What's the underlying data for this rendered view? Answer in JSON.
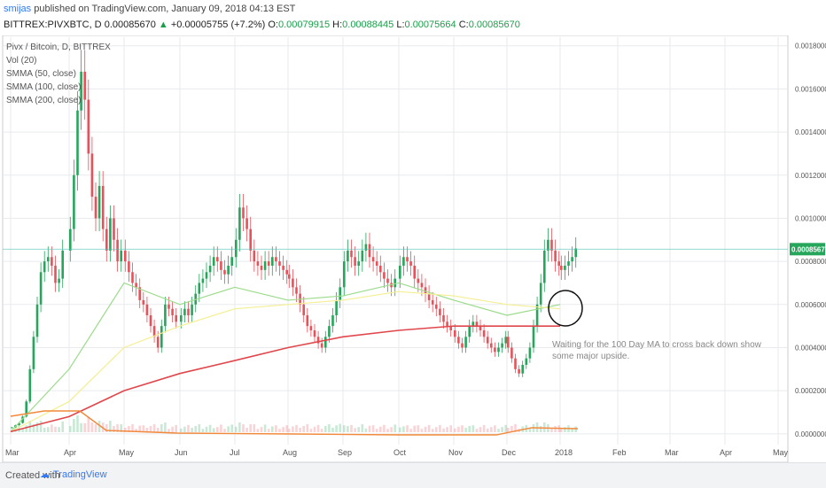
{
  "header": {
    "user": "smijas",
    "published_text": "published on TradingView.com, January 09, 2018 04:13 EST",
    "symbol": "BITTREX:PIVXBTC, D",
    "price": "0.00085670",
    "change_arrow": "▲",
    "change": "+0.00005755 (+7.2%)",
    "o_label": "O:",
    "o_value": "0.00079915",
    "h_label": "H:",
    "h_value": "0.00088445",
    "l_label": "L:",
    "l_value": "0.00075664",
    "c_label": "C:",
    "c_value": "0.00085670"
  },
  "legend": {
    "title": "Pivx / Bitcoin, D, BITTREX",
    "items": [
      "Vol (20)",
      "SMMA (50, close)",
      "SMMA (100, close)",
      "SMMA (200, close)"
    ]
  },
  "annotation": {
    "line1": "Waiting for the 100 Day MA to cross back down show",
    "line2": "some major upside."
  },
  "footer": {
    "created_with": "Created with",
    "brand": "TradingView",
    "icon": "tradingview-logo-icon"
  },
  "colors": {
    "up": "#26a65b",
    "down": "#e8515a",
    "smma50": "#9bdb8a",
    "smma100": "#f4ef92",
    "smma200": "#e0474c",
    "vol_ma": "#f2883a",
    "price_line": "#4fc1b4",
    "grid": "#e8eaed"
  },
  "chart_data": {
    "type": "candlestick",
    "title": "Pivx / Bitcoin, D, BITTREX",
    "x_ticks": [
      "Mar",
      "Apr",
      "May",
      "Jun",
      "Jul",
      "Aug",
      "Sep",
      "Oct",
      "Nov",
      "Dec",
      "2018",
      "Feb",
      "Mar",
      "Apr",
      "May"
    ],
    "y_ticks": [
      "0.00180000",
      "0.00160000",
      "0.00140000",
      "0.00120000",
      "0.00100000",
      "0.00080000",
      "0.00060000",
      "0.00040000",
      "0.00020000",
      "0.00000000"
    ],
    "ylim": [
      -5e-05,
      0.00184
    ],
    "current_price_label": "0.00085670",
    "close_by_month": [
      {
        "x": "Mar",
        "values": [
          3e-05,
          4e-05,
          5e-05,
          8e-05,
          0.00015,
          0.0003,
          0.00045,
          0.0006,
          0.00075,
          0.0008,
          0.00082,
          0.00078,
          0.0007,
          0.00072,
          0.00085
        ]
      },
      {
        "x": "Apr",
        "values": [
          0.00095,
          0.0012,
          0.0015,
          0.00168,
          0.00155,
          0.0013,
          0.0011,
          0.001,
          0.00115,
          0.00095,
          0.00085,
          0.001,
          0.0009,
          0.0008,
          0.00085
        ]
      },
      {
        "x": "May",
        "values": [
          0.0008,
          0.00075,
          0.0007,
          0.00068,
          0.00062,
          0.0006,
          0.00055,
          0.0005,
          0.00045,
          0.0004,
          0.0005,
          0.0006,
          0.00058,
          0.00055,
          0.00052
        ]
      },
      {
        "x": "Jun",
        "values": [
          0.00055,
          0.00058,
          0.00055,
          0.0006,
          0.00065,
          0.0007,
          0.00072,
          0.00075,
          0.00078,
          0.00082,
          0.0008,
          0.00076,
          0.00074,
          0.00078,
          0.00082
        ]
      },
      {
        "x": "Jul",
        "values": [
          0.0009,
          0.00105,
          0.001,
          0.00095,
          0.00085,
          0.0008,
          0.00078,
          0.00076,
          0.0008,
          0.00078,
          0.00082,
          0.0008,
          0.00078,
          0.00076,
          0.00074
        ]
      },
      {
        "x": "Aug",
        "values": [
          0.00072,
          0.00068,
          0.00065,
          0.0006,
          0.00055,
          0.0005,
          0.00048,
          0.00045,
          0.00042,
          0.0004,
          0.00045,
          0.0005,
          0.00055,
          0.00062,
          0.00068
        ]
      },
      {
        "x": "Sep",
        "values": [
          0.0008,
          0.00085,
          0.00082,
          0.00078,
          0.0008,
          0.00085,
          0.00088,
          0.00082,
          0.0008,
          0.00078,
          0.00075,
          0.00072,
          0.0007,
          0.00068,
          0.00072
        ]
      },
      {
        "x": "Oct",
        "values": [
          0.00078,
          0.00082,
          0.0008,
          0.00078,
          0.00072,
          0.0007,
          0.00068,
          0.00065,
          0.00062,
          0.0006,
          0.00058,
          0.00055,
          0.00052,
          0.0005,
          0.00048
        ]
      },
      {
        "x": "Nov",
        "values": [
          0.00045,
          0.00042,
          0.0004,
          0.00045,
          0.0005,
          0.00052,
          0.0005,
          0.00048,
          0.00045,
          0.00042,
          0.0004,
          0.00038,
          0.0004,
          0.00042,
          0.00045
        ]
      },
      {
        "x": "Dec",
        "values": [
          0.0004,
          0.00035,
          0.0003,
          0.00028,
          0.00032,
          0.00035,
          0.0004,
          0.0005,
          0.0006,
          0.0007,
          0.00085,
          0.0009,
          0.00085,
          0.0008,
          0.00078
        ]
      },
      {
        "x": "2018",
        "values": [
          0.00076,
          0.00078,
          0.0008,
          0.00082,
          0.00086
        ]
      }
    ],
    "series": [
      {
        "name": "SMMA (50, close)",
        "points": [
          [
            "Mar",
            1e-05
          ],
          [
            "Apr",
            0.0003
          ],
          [
            "May",
            0.0007
          ],
          [
            "Jun",
            0.0006
          ],
          [
            "Jul",
            0.00068
          ],
          [
            "Aug",
            0.00062
          ],
          [
            "Sep",
            0.00064
          ],
          [
            "Oct",
            0.0007
          ],
          [
            "Nov",
            0.00062
          ],
          [
            "Dec",
            0.00055
          ],
          [
            "2018",
            0.0006
          ]
        ]
      },
      {
        "name": "SMMA (100, close)",
        "points": [
          [
            "Mar",
            1e-05
          ],
          [
            "Apr",
            0.00015
          ],
          [
            "May",
            0.0004
          ],
          [
            "Jun",
            0.0005
          ],
          [
            "Jul",
            0.00058
          ],
          [
            "Aug",
            0.0006
          ],
          [
            "Sep",
            0.00062
          ],
          [
            "Oct",
            0.00066
          ],
          [
            "Nov",
            0.00064
          ],
          [
            "Dec",
            0.0006
          ],
          [
            "2018",
            0.00058
          ]
        ]
      },
      {
        "name": "SMMA (200, close)",
        "points": [
          [
            "Mar",
            1e-05
          ],
          [
            "Apr",
            8e-05
          ],
          [
            "May",
            0.0002
          ],
          [
            "Jun",
            0.00028
          ],
          [
            "Jul",
            0.00034
          ],
          [
            "Aug",
            0.0004
          ],
          [
            "Sep",
            0.00045
          ],
          [
            "Oct",
            0.00048
          ],
          [
            "Nov",
            0.0005
          ],
          [
            "Dec",
            0.0005
          ],
          [
            "2018",
            0.0005
          ]
        ]
      }
    ]
  }
}
